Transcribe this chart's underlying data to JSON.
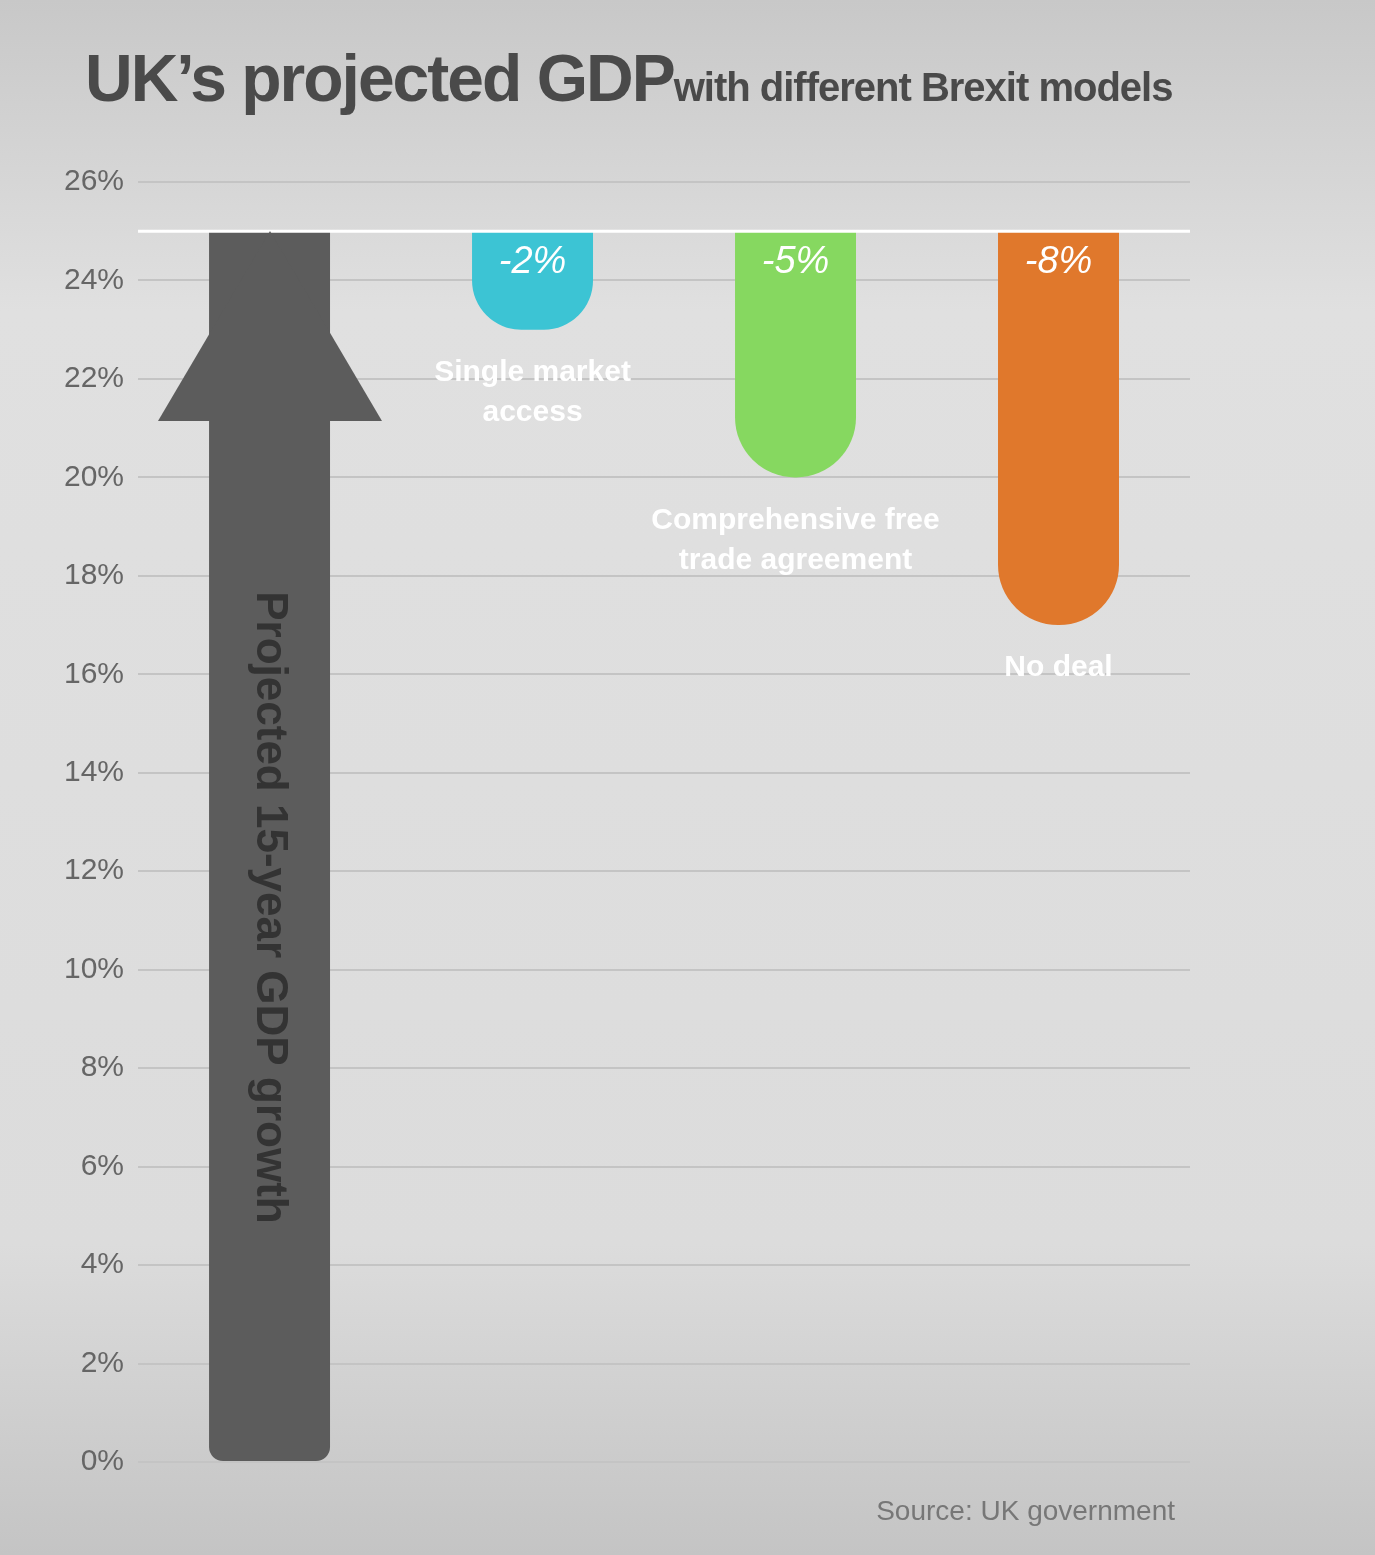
{
  "chart_data": {
    "type": "bar",
    "title": "UK’s projected GDP",
    "subtitle": "with different Brexit models",
    "categories": [
      "Projected 15-year GDP growth",
      "Single market access",
      "Comprehensive free trade agreement",
      "No deal"
    ],
    "base": [
      0,
      25,
      25,
      25
    ],
    "values": [
      25,
      -2,
      -5,
      -8
    ],
    "colors": [
      "#5c5c5c",
      "#3cc4d4",
      "#86d860",
      "#e0782c"
    ],
    "value_labels": [
      null,
      "-2%",
      "-5%",
      "-8%"
    ],
    "ylim": [
      0,
      26
    ],
    "yticks": [
      {
        "value": 0,
        "label": "0%"
      },
      {
        "value": 2,
        "label": "2%"
      },
      {
        "value": 4,
        "label": "4%"
      },
      {
        "value": 6,
        "label": "6%"
      },
      {
        "value": 8,
        "label": "8%"
      },
      {
        "value": 10,
        "label": "10%"
      },
      {
        "value": 12,
        "label": "12%"
      },
      {
        "value": 14,
        "label": "14%"
      },
      {
        "value": 16,
        "label": "16%"
      },
      {
        "value": 18,
        "label": "18%"
      },
      {
        "value": 20,
        "label": "20%"
      },
      {
        "value": 22,
        "label": "22%"
      },
      {
        "value": 24,
        "label": "24%"
      },
      {
        "value": 26,
        "label": "26%"
      }
    ],
    "ref_lines": [
      {
        "axis": "y",
        "value": 25,
        "color": "#ffffff"
      }
    ],
    "grid": "y",
    "legend": false,
    "tick_labels": "y",
    "annotations": [
      "Source: UK government"
    ]
  }
}
